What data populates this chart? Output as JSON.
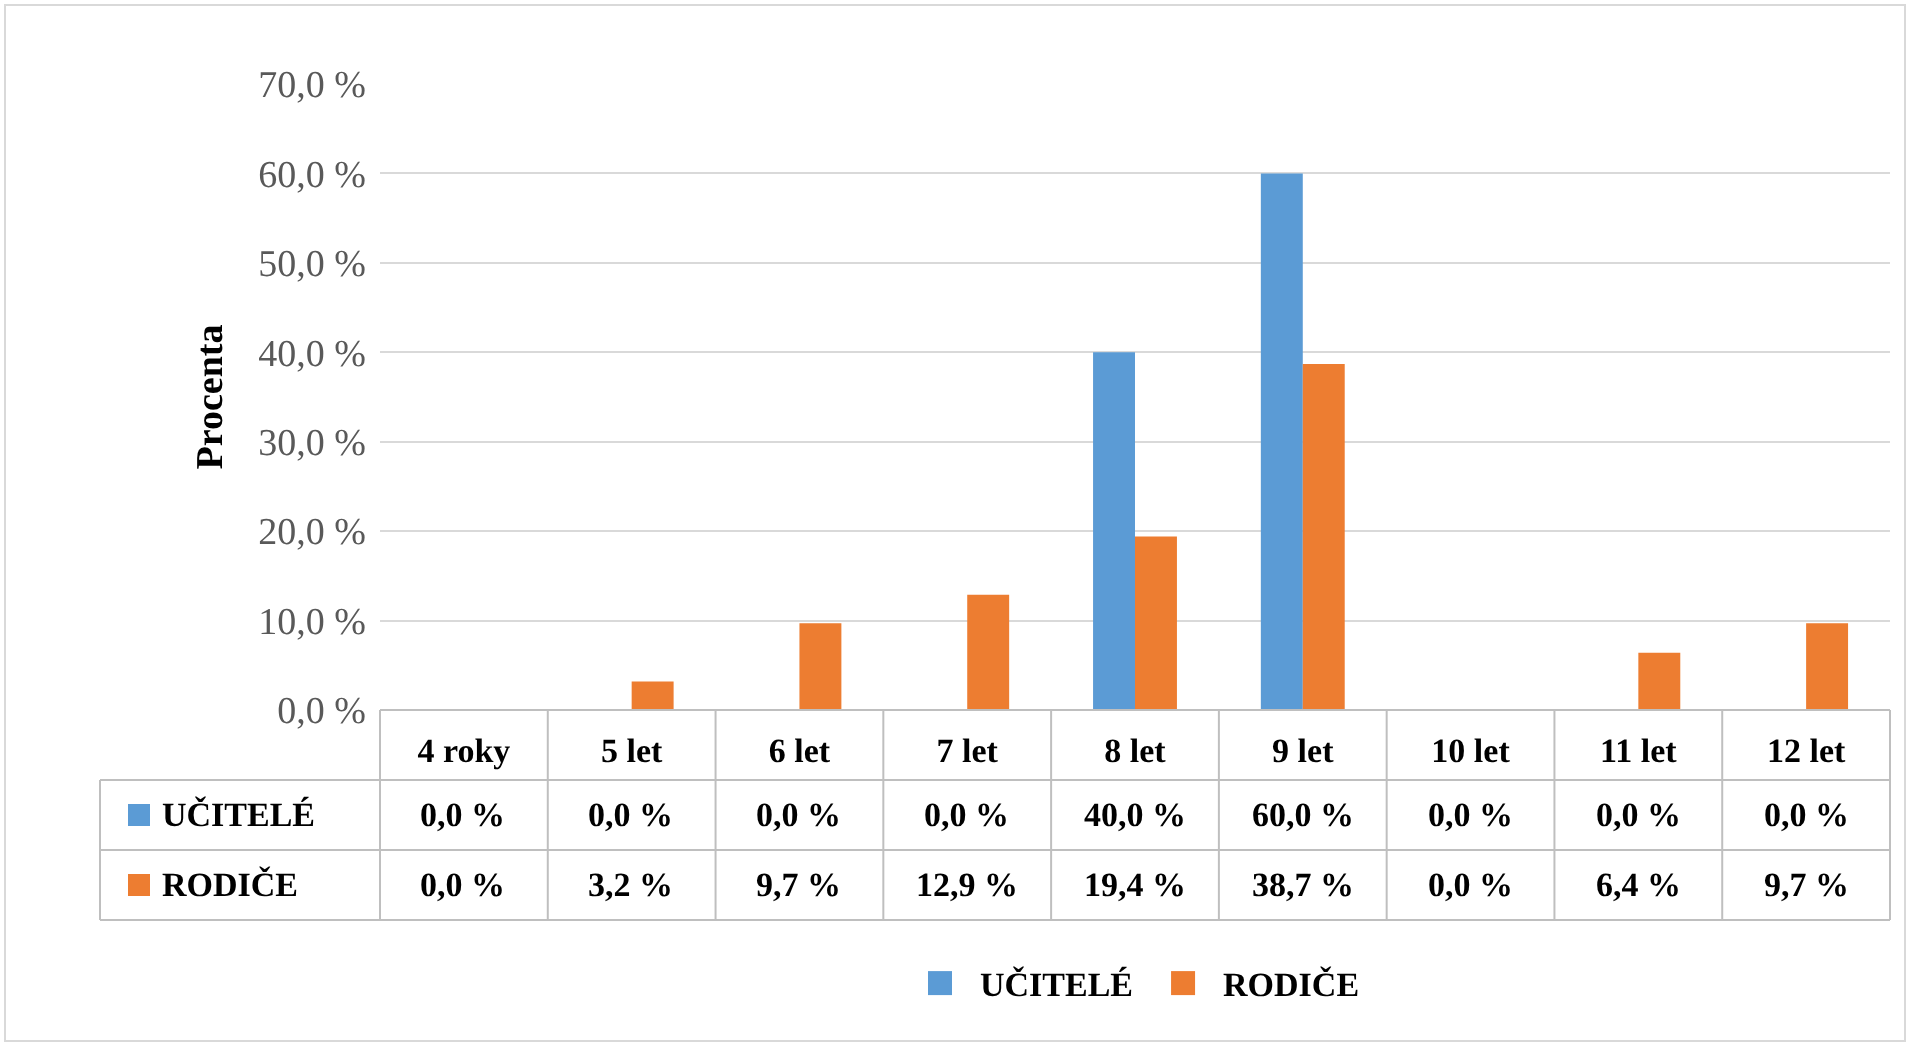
{
  "chart_data": {
    "type": "bar",
    "ylabel": "Procenta",
    "categories": [
      "4 roky",
      "5 let",
      "6 let",
      "7 let",
      "8 let",
      "9 let",
      "10 let",
      "11 let",
      "12 let"
    ],
    "series": [
      {
        "name": "UČITELÉ",
        "color": "#5b9bd5",
        "values": [
          0.0,
          0.0,
          0.0,
          0.0,
          40.0,
          60.0,
          0.0,
          0.0,
          0.0
        ],
        "value_labels": [
          "0,0 %",
          "0,0 %",
          "0,0 %",
          "0,0 %",
          "40,0 %",
          "60,0 %",
          "0,0 %",
          "0,0 %",
          "0,0 %"
        ]
      },
      {
        "name": "RODIČE",
        "color": "#ed7d31",
        "values": [
          0.0,
          3.2,
          9.7,
          12.9,
          19.4,
          38.7,
          0.0,
          6.4,
          9.7
        ],
        "value_labels": [
          "0,0 %",
          "3,2 %",
          "9,7 %",
          "12,9 %",
          "19,4 %",
          "38,7 %",
          "0,0 %",
          "6,4 %",
          "9,7 %"
        ]
      }
    ],
    "ylim": [
      0,
      70
    ],
    "yticks": [
      {
        "value": 0,
        "label": "0,0 %"
      },
      {
        "value": 10,
        "label": "10,0 %"
      },
      {
        "value": 20,
        "label": "20,0 %"
      },
      {
        "value": 30,
        "label": "30,0 %"
      },
      {
        "value": 40,
        "label": "40,0 %"
      },
      {
        "value": 50,
        "label": "50,0 %"
      },
      {
        "value": 60,
        "label": "60,0 %"
      },
      {
        "value": 70,
        "label": "70,0 %"
      }
    ],
    "grid": "y",
    "legend": "bottom"
  }
}
